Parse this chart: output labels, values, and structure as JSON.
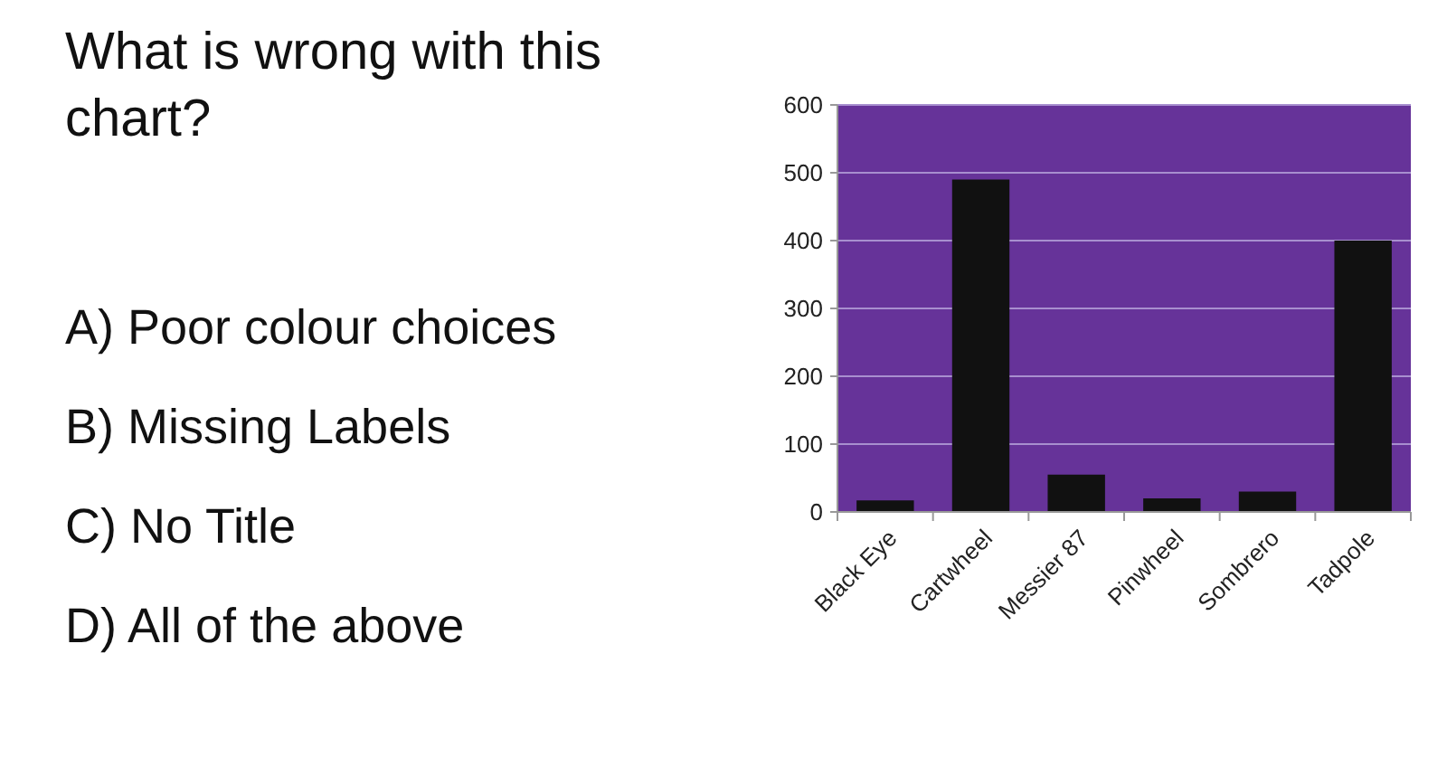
{
  "chart_data": {
    "type": "bar",
    "title": "What is wrong with this chart?",
    "annotations": [
      "A) Poor colour choices",
      "B) Missing Labels",
      "C) No Title",
      "D) All of the above"
    ],
    "categories": [
      "Black Eye",
      "Cartwheel",
      "Messier 87",
      "Pinwheel",
      "Sombrero",
      "Tadpole"
    ],
    "values": [
      17,
      490,
      55,
      20,
      30,
      400
    ],
    "color": "#111111",
    "ylim": [
      0,
      600
    ],
    "yticks": [
      0,
      100,
      200,
      300,
      400,
      500,
      600
    ],
    "grid": "y"
  }
}
